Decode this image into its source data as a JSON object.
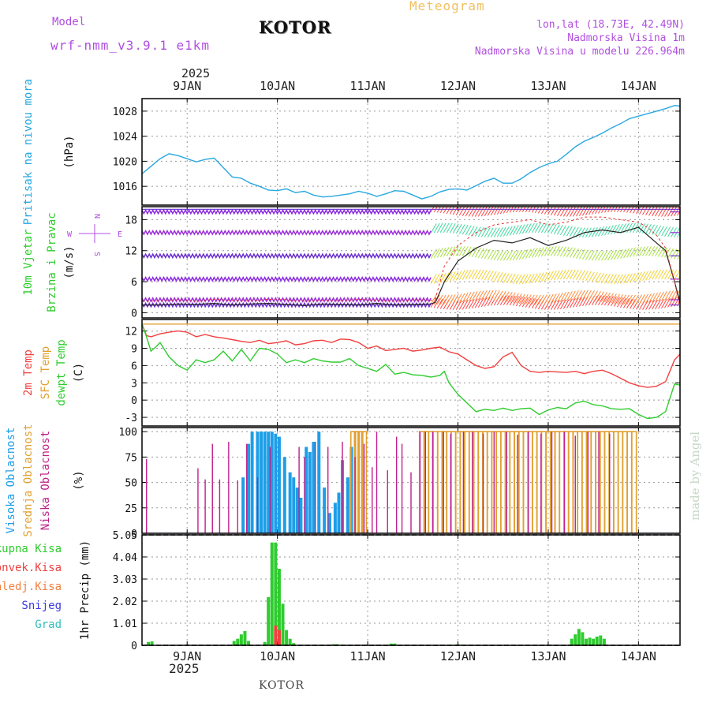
{
  "header": {
    "model_label": "Model",
    "model_name": "wrf-nmm_v3.9.1 e1km",
    "city": "KOTOR",
    "title": "Meteogram",
    "lonlat": "lon,lat (18.73E, 42.49N)",
    "elevation": "Nadmorska Visina 1m",
    "model_elevation": "Nadmorska Visina u modelu 226.964m",
    "year": "2025",
    "footer": "KOTOR",
    "made_by": "made by Angel"
  },
  "colors": {
    "pressure": "#29a8e0",
    "temp2m": "#f04040",
    "sfc_temp": "#e0a030",
    "dewpt": "#2ecc2e",
    "high_cloud": "#1e9ee8",
    "mid_cloud": "#e0a030",
    "low_cloud": "#c0208a",
    "wind_label": "#b04fe0",
    "precip": "#2ecc2e",
    "grid": "#999999"
  },
  "chart_data": [
    {
      "type": "line",
      "name": "pressure",
      "ylabel_lines": [
        "Pritisak na nivou mora"
      ],
      "unit": "(hPa)",
      "ylim": [
        1013,
        1030
      ],
      "yticks": [
        1016,
        1020,
        1024,
        1028
      ],
      "x_days": [
        "9JAN",
        "10JAN",
        "11JAN",
        "12JAN",
        "13JAN",
        "14JAN"
      ],
      "series": [
        {
          "x": [
            8.5,
            8.6,
            8.7,
            8.8,
            8.9,
            9.0,
            9.1,
            9.2,
            9.3,
            9.4,
            9.5,
            9.6,
            9.7,
            9.8,
            9.9,
            10.0,
            10.1,
            10.2,
            10.3,
            10.4,
            10.5,
            10.6,
            10.7,
            10.8,
            10.9,
            11.0,
            11.1,
            11.2,
            11.3,
            11.4,
            11.5,
            11.6,
            11.7,
            11.8,
            11.9,
            12.0,
            12.1,
            12.2,
            12.3,
            12.4,
            12.5,
            12.6,
            12.7,
            12.8,
            12.9,
            13.0,
            13.1,
            13.2,
            13.3,
            13.4,
            13.5,
            13.6,
            13.7,
            13.8,
            13.9,
            14.0,
            14.1,
            14.2,
            14.3,
            14.4,
            14.46
          ],
          "values": [
            1018.0,
            1019.2,
            1020.4,
            1021.2,
            1020.9,
            1020.4,
            1019.9,
            1020.3,
            1020.5,
            1019.0,
            1017.5,
            1017.3,
            1016.5,
            1016.0,
            1015.4,
            1015.3,
            1015.6,
            1015.0,
            1015.2,
            1014.6,
            1014.3,
            1014.4,
            1014.6,
            1014.8,
            1015.2,
            1014.9,
            1014.4,
            1014.8,
            1015.3,
            1015.2,
            1014.6,
            1014.0,
            1014.4,
            1015.1,
            1015.5,
            1015.6,
            1015.4,
            1016.1,
            1016.8,
            1017.3,
            1016.5,
            1016.5,
            1017.2,
            1018.2,
            1019.0,
            1019.6,
            1020.0,
            1021.1,
            1022.3,
            1023.2,
            1023.8,
            1024.5,
            1025.3,
            1026.0,
            1026.8,
            1027.2,
            1027.6,
            1028.0,
            1028.4,
            1028.9,
            1028.8
          ]
        }
      ]
    },
    {
      "type": "line",
      "name": "wind",
      "ylabel_lines": [
        "10m Vjetar",
        "Brzina i Pravac"
      ],
      "unit": "(m/s)",
      "ylim": [
        -1,
        20.5
      ],
      "yticks": [
        0,
        6,
        12,
        18
      ],
      "compass": [
        "N",
        "W",
        "E",
        "S"
      ],
      "series": [
        {
          "name": "speed",
          "x": [
            8.5,
            8.7,
            8.9,
            9.1,
            9.3,
            9.5,
            9.7,
            9.9,
            10.1,
            10.3,
            10.5,
            10.7,
            10.9,
            11.1,
            11.3,
            11.5,
            11.7,
            11.75,
            11.85,
            12.0,
            12.2,
            12.4,
            12.6,
            12.8,
            13.0,
            13.2,
            13.4,
            13.6,
            13.8,
            14.0,
            14.1,
            14.2,
            14.3,
            14.4,
            14.46
          ],
          "values": [
            1.5,
            1.5,
            1.7,
            1.6,
            1.8,
            1.5,
            1.7,
            1.8,
            1.6,
            1.4,
            1.7,
            1.6,
            1.5,
            1.8,
            1.5,
            1.6,
            1.7,
            2.0,
            6.0,
            10.0,
            12.5,
            14.0,
            13.5,
            14.5,
            13.0,
            14.0,
            15.5,
            16.0,
            15.5,
            16.5,
            15.0,
            13.5,
            12.0,
            6.0,
            2.0
          ]
        },
        {
          "name": "gust",
          "x": [
            8.5,
            8.7,
            8.9,
            9.1,
            9.3,
            9.5,
            9.7,
            9.9,
            10.1,
            10.3,
            10.5,
            10.7,
            10.9,
            11.1,
            11.3,
            11.5,
            11.7,
            11.75,
            11.85,
            12.0,
            12.2,
            12.4,
            12.6,
            12.8,
            13.0,
            13.2,
            13.4,
            13.6,
            13.8,
            14.0,
            14.1,
            14.2,
            14.3,
            14.4,
            14.46
          ],
          "values": [
            2.2,
            2.3,
            2.5,
            2.2,
            2.6,
            2.4,
            2.3,
            2.6,
            2.5,
            2.2,
            2.4,
            2.3,
            2.6,
            2.4,
            2.2,
            2.5,
            2.4,
            2.7,
            9.0,
            13.0,
            15.5,
            17.0,
            17.5,
            18.0,
            17.0,
            17.5,
            18.5,
            18.5,
            18.0,
            17.5,
            16.5,
            15.0,
            12.5,
            6.0,
            1.0
          ]
        }
      ],
      "barb_bands": [
        1.5,
        2.5,
        6.5,
        11.0,
        15.5,
        19.5
      ],
      "barb_colors_calm": [
        "#6a2fd0",
        "#9b30d8",
        "#8a2be2"
      ],
      "barb_colors_wind": [
        "#ff4444",
        "#ff8a3c",
        "#f0d030",
        "#a8e040",
        "#40d8a0"
      ]
    },
    {
      "type": "line",
      "name": "temperature",
      "ylabel_lines": [
        "2m Temp",
        "SFC Temp",
        "dewpt Temp"
      ],
      "unit": "(C)",
      "ylim": [
        -4.5,
        14
      ],
      "yticks": [
        -3,
        0,
        3,
        6,
        9,
        12
      ],
      "series": [
        {
          "name": "2m Temp",
          "x": [
            8.5,
            8.55,
            8.6,
            8.7,
            8.8,
            8.9,
            9.0,
            9.1,
            9.2,
            9.3,
            9.4,
            9.5,
            9.6,
            9.7,
            9.8,
            9.9,
            10.0,
            10.1,
            10.2,
            10.3,
            10.4,
            10.5,
            10.6,
            10.7,
            10.8,
            10.9,
            11.0,
            11.1,
            11.2,
            11.3,
            11.4,
            11.5,
            11.6,
            11.7,
            11.8,
            11.9,
            12.0,
            12.1,
            12.2,
            12.3,
            12.4,
            12.5,
            12.6,
            12.7,
            12.8,
            12.9,
            13.0,
            13.1,
            13.2,
            13.3,
            13.4,
            13.5,
            13.6,
            13.7,
            13.8,
            13.9,
            14.0,
            14.1,
            14.2,
            14.3,
            14.4,
            14.46
          ],
          "values": [
            13.2,
            11.2,
            11.0,
            11.5,
            11.8,
            12.0,
            11.8,
            11.0,
            11.4,
            11.0,
            10.8,
            10.5,
            10.2,
            10.0,
            10.4,
            9.8,
            10.0,
            10.3,
            9.6,
            9.8,
            10.3,
            10.4,
            10.0,
            10.6,
            10.5,
            10.0,
            9.0,
            9.4,
            8.6,
            8.8,
            9.0,
            8.5,
            8.7,
            9.0,
            9.2,
            8.4,
            8.0,
            7.0,
            6.0,
            5.5,
            5.8,
            7.5,
            8.3,
            6.0,
            5.0,
            4.8,
            5.0,
            4.9,
            4.8,
            5.0,
            4.6,
            5.0,
            5.2,
            4.6,
            3.8,
            3.0,
            2.5,
            2.2,
            2.4,
            3.2,
            7.0,
            8.0
          ]
        },
        {
          "name": "SFC Temp",
          "x": [
            8.5,
            14.46
          ],
          "values": [
            13.2,
            13.2
          ]
        },
        {
          "name": "dewpt Temp",
          "x": [
            8.5,
            8.55,
            8.6,
            8.65,
            8.7,
            8.8,
            8.9,
            9.0,
            9.1,
            9.2,
            9.3,
            9.4,
            9.5,
            9.6,
            9.7,
            9.8,
            9.9,
            10.0,
            10.1,
            10.2,
            10.3,
            10.4,
            10.5,
            10.6,
            10.7,
            10.8,
            10.9,
            11.0,
            11.1,
            11.2,
            11.3,
            11.4,
            11.5,
            11.6,
            11.7,
            11.8,
            11.85,
            11.9,
            12.0,
            12.1,
            12.2,
            12.3,
            12.4,
            12.5,
            12.6,
            12.7,
            12.8,
            12.9,
            13.0,
            13.1,
            13.2,
            13.3,
            13.4,
            13.5,
            13.6,
            13.7,
            13.8,
            13.9,
            14.0,
            14.1,
            14.2,
            14.3,
            14.4,
            14.46
          ],
          "values": [
            13.2,
            11.0,
            8.5,
            9.2,
            10.0,
            7.5,
            6.0,
            5.2,
            7.0,
            6.5,
            7.0,
            8.5,
            6.8,
            8.8,
            6.8,
            9.0,
            8.8,
            8.0,
            6.5,
            7.0,
            6.5,
            7.2,
            6.8,
            6.6,
            6.6,
            7.2,
            6.0,
            5.5,
            5.0,
            6.2,
            4.5,
            4.8,
            4.4,
            4.3,
            4.0,
            4.3,
            5.0,
            3.0,
            1.0,
            -0.5,
            -2.0,
            -1.6,
            -1.8,
            -1.4,
            -1.8,
            -1.5,
            -1.4,
            -2.5,
            -1.7,
            -1.3,
            -1.5,
            -0.5,
            -0.2,
            -0.8,
            -1.0,
            -1.5,
            -1.6,
            -1.5,
            -2.5,
            -3.2,
            -3.0,
            -2.0,
            2.8,
            2.6
          ]
        }
      ]
    },
    {
      "type": "bar",
      "name": "cloud",
      "ylabel_lines": [
        "Visoka Oblacnost",
        "Srednja Oblacnost",
        "Niska Oblacnost"
      ],
      "unit": "(%)",
      "ylim": [
        0,
        104
      ],
      "yticks": [
        0,
        25,
        50,
        75,
        100
      ],
      "series": [
        {
          "name": "Visoka Oblacnost",
          "x": [
            9.62,
            9.68,
            9.72,
            9.78,
            9.82,
            9.86,
            9.9,
            9.94,
            9.98,
            10.02,
            10.08,
            10.14,
            10.18,
            10.22,
            10.26,
            10.32,
            10.36,
            10.4,
            10.46,
            10.52,
            10.58,
            10.64,
            10.68,
            10.72,
            10.78,
            10.82
          ],
          "values": [
            55,
            88,
            100,
            100,
            100,
            100,
            100,
            100,
            98,
            95,
            75,
            60,
            55,
            45,
            35,
            85,
            80,
            90,
            100,
            45,
            20,
            30,
            40,
            72,
            55,
            85
          ]
        },
        {
          "name": "Srednja Oblacnost",
          "x": [
            10.84,
            10.88,
            10.92,
            10.96,
            11.6,
            11.65,
            11.7,
            11.75,
            11.8,
            11.85,
            11.9,
            11.95,
            12.0,
            12.05,
            12.1,
            12.15,
            12.2,
            12.25,
            12.3,
            12.35,
            12.4,
            12.45,
            12.5,
            12.55,
            12.6,
            12.65,
            12.7,
            12.75,
            12.8,
            12.85,
            12.9,
            12.95,
            13.0,
            13.05,
            13.1,
            13.15,
            13.2,
            13.25,
            13.3,
            13.35,
            13.4,
            13.45,
            13.5,
            13.55,
            13.6,
            13.65,
            13.7,
            13.75,
            13.8,
            13.85,
            13.9,
            13.95
          ],
          "values": [
            100,
            100,
            100,
            100,
            100,
            100,
            100,
            100,
            100,
            100,
            100,
            100,
            100,
            100,
            100,
            100,
            100,
            100,
            100,
            100,
            100,
            100,
            100,
            100,
            100,
            100,
            100,
            100,
            100,
            100,
            100,
            100,
            100,
            100,
            100,
            100,
            100,
            100,
            100,
            100,
            100,
            100,
            100,
            100,
            100,
            100,
            100,
            100,
            100,
            100,
            100,
            100
          ]
        },
        {
          "name": "Niska Oblacnost",
          "x": [
            8.55,
            9.12,
            9.2,
            9.28,
            9.36,
            9.46,
            9.56,
            9.66,
            9.78,
            9.92,
            10.24,
            10.3,
            10.42,
            10.56,
            10.72,
            10.86,
            10.96,
            11.05,
            11.1,
            11.22,
            11.32,
            11.38,
            11.48,
            11.58,
            11.64,
            11.72,
            11.84,
            11.92,
            12.06,
            12.16,
            12.28,
            12.4,
            12.54,
            12.66,
            12.78,
            12.92,
            13.04,
            13.18,
            13.3,
            13.44,
            13.56,
            13.68
          ],
          "values": [
            73,
            64,
            53,
            88,
            53,
            90,
            52,
            88,
            55,
            85,
            85,
            75,
            90,
            85,
            90,
            75,
            88,
            65,
            100,
            62,
            95,
            88,
            60,
            100,
            100,
            100,
            100,
            98,
            100,
            100,
            98,
            100,
            100,
            97,
            100,
            98,
            100,
            100,
            96,
            100,
            100,
            98
          ]
        }
      ]
    },
    {
      "type": "bar",
      "name": "precip",
      "ylabel_lines": [
        "1hr Precip"
      ],
      "unit": "(mm)",
      "ylim": [
        0,
        5.05
      ],
      "yticks": [
        0,
        1.01,
        2.02,
        3.03,
        4.04,
        5.05
      ],
      "legend": [
        "Ukupna Kisa",
        "Konvek.Kisa",
        "Zaledj.Kisa",
        "Snijeg",
        "Grad"
      ],
      "legend_colors": [
        "#2ecc2e",
        "#f04040",
        "#f08040",
        "#3a3ae0",
        "#30c0c0"
      ],
      "series": [
        {
          "name": "Ukupna Kisa",
          "x": [
            8.57,
            8.61,
            9.52,
            9.56,
            9.6,
            9.64,
            9.68,
            9.86,
            9.9,
            9.94,
            9.98,
            10.02,
            10.06,
            10.1,
            10.14,
            10.18,
            10.62,
            10.66,
            11.26,
            11.3,
            12.0,
            13.26,
            13.3,
            13.34,
            13.38,
            13.42,
            13.46,
            13.5,
            13.54,
            13.58,
            13.62
          ],
          "values": [
            0.15,
            0.18,
            0.2,
            0.3,
            0.5,
            0.65,
            0.2,
            0.15,
            2.2,
            4.7,
            4.7,
            3.5,
            1.9,
            0.7,
            0.3,
            0.1,
            0.05,
            0.05,
            0.08,
            0.08,
            0.05,
            0.3,
            0.5,
            0.75,
            0.6,
            0.3,
            0.35,
            0.3,
            0.4,
            0.45,
            0.3
          ]
        },
        {
          "name": "Konvek.Kisa",
          "x": [
            9.98,
            10.02
          ],
          "values": [
            0.9,
            0.7
          ]
        }
      ]
    }
  ]
}
